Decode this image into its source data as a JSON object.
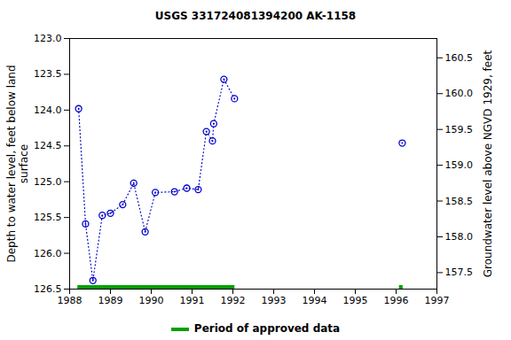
{
  "chart_data": {
    "type": "line",
    "title": "USGS 331724081394200 AK-1158",
    "ylabel": "Depth to water level, feet below land\nsurface",
    "y2label": "Groundwater level above NGVD 1929, feet",
    "x": [
      1988.22,
      1988.39,
      1988.57,
      1988.8,
      1989.0,
      1989.3,
      1989.57,
      1989.85,
      1990.1,
      1990.57,
      1990.87,
      1991.15,
      1991.35,
      1991.5,
      1991.53,
      1991.78,
      1992.04,
      1996.15
    ],
    "values": [
      123.98,
      125.59,
      126.38,
      125.47,
      125.44,
      125.32,
      125.02,
      125.7,
      125.15,
      125.14,
      125.09,
      125.11,
      124.3,
      124.43,
      124.19,
      123.57,
      123.84,
      124.46
    ],
    "color": "#0000cc",
    "marker": "circle",
    "line_style": "dotted",
    "xlim": [
      1988,
      1997
    ],
    "xticks": [
      1988,
      1989,
      1990,
      1991,
      1992,
      1993,
      1994,
      1995,
      1996,
      1997
    ],
    "ylim": [
      123,
      126.5
    ],
    "yticks": [
      {
        "value": 123,
        "label": "123.0"
      },
      {
        "value": 123.5,
        "label": "123.5"
      },
      {
        "value": 124,
        "label": "124.0"
      },
      {
        "value": 124.5,
        "label": "124.5"
      },
      {
        "value": 125,
        "label": "125.0"
      },
      {
        "value": 125.5,
        "label": "125.5"
      },
      {
        "value": 126,
        "label": "126.0"
      },
      {
        "value": 126.5,
        "label": "126.5"
      }
    ],
    "y2lim": [
      157.27,
      160.77
    ],
    "y2ticks": [
      157.5,
      {
        "value": 158,
        "label": "158.0"
      },
      158.5,
      {
        "value": 159,
        "label": "159.0"
      },
      159.5,
      {
        "value": 160,
        "label": "160.0"
      },
      160.5
    ],
    "approved_data": {
      "name": "Period of approved data",
      "color": "#00a000",
      "periods": [
        [
          1988.2,
          1992.05
        ],
        [
          1996.08,
          1996.17
        ]
      ]
    },
    "legend": "bottom"
  }
}
